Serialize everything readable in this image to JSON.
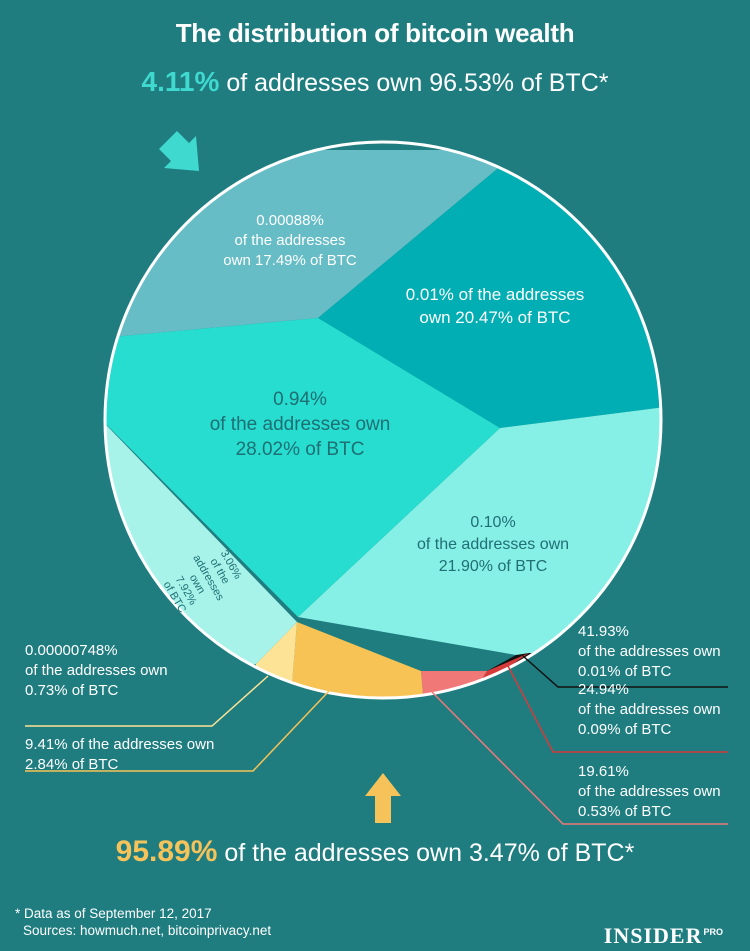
{
  "title": "The distribution of bitcoin wealth",
  "subtitle": {
    "highlight": "4.11%",
    "text": " of addresses own 96.53% of BTC*"
  },
  "bottom_headline": {
    "highlight": "95.89%",
    "text": " of the addresses own 3.47% of BTC*"
  },
  "footnote": {
    "line1": "* Data as of September 12, 2017",
    "line2": "Sources: howmuch.net, bitcoinprivacy.net"
  },
  "logo": {
    "name": "INSIDER",
    "tag": "PRO"
  },
  "icons": {
    "top_arrow": "arrow-down-right-icon",
    "bottom_arrow": "arrow-up-icon"
  },
  "colors": {
    "background": "#1f7d80",
    "top_highlight": "#3fd9cf",
    "bottom_highlight": "#f6c25a"
  },
  "chart_data": {
    "type": "pie",
    "slices": [
      {
        "addresses_pct": "0.00088%",
        "btc_pct": 17.49,
        "lines": [
          "0.00088%",
          "of the addresses",
          "own 17.49% of BTC"
        ],
        "color": "#66bdc6",
        "text_color": "#ffffff"
      },
      {
        "addresses_pct": "0.01%",
        "btc_pct": 20.47,
        "lines": [
          "0.01% of the addresses",
          "own 20.47% of BTC"
        ],
        "color": "#00aeb3",
        "text_color": "#ffffff"
      },
      {
        "addresses_pct": "0.10%",
        "btc_pct": 21.9,
        "lines": [
          "0.10%",
          "of the addresses own",
          "21.90% of BTC"
        ],
        "color": "#87f0e6",
        "text_color": "#1f6f74"
      },
      {
        "addresses_pct": "41.93%",
        "btc_pct": 0.01,
        "lines": [
          "41.93%",
          "of the addresses own",
          "0.01% of BTC"
        ],
        "color": "#111111",
        "text_color": "#ffffff"
      },
      {
        "addresses_pct": "24.94%",
        "btc_pct": 0.09,
        "lines": [
          "24.94%",
          "of the addresses own",
          "0.09% of BTC"
        ],
        "color": "#d63a3a",
        "text_color": "#ffffff"
      },
      {
        "addresses_pct": "19.61%",
        "btc_pct": 0.53,
        "lines": [
          "19.61%",
          "of the addresses own",
          "0.53% of BTC"
        ],
        "color": "#f07877",
        "text_color": "#ffffff"
      },
      {
        "addresses_pct": "9.41%",
        "btc_pct": 2.84,
        "lines": [
          "9.41% of the addresses own",
          "2.84% of BTC"
        ],
        "color": "#f7c355",
        "text_color": "#ffffff"
      },
      {
        "addresses_pct": "0.00000748%",
        "btc_pct": 0.73,
        "lines": [
          "0.00000748%",
          "of the addresses own",
          "0.73% of BTC"
        ],
        "color": "#fde396",
        "text_color": "#ffffff"
      },
      {
        "addresses_pct": "3.06%",
        "btc_pct": 7.92,
        "lines": [
          "3.06%",
          "of the",
          "addresses",
          "own",
          "7.92%",
          "of BTC"
        ],
        "color": "#a7f3ea",
        "text_color": "#1f6f74"
      },
      {
        "addresses_pct": "0.94%",
        "btc_pct": 28.02,
        "lines": [
          "0.94%",
          "of the addresses own",
          "28.02% of BTC"
        ],
        "color": "#26ddd0",
        "text_color": "#1f6f74"
      }
    ]
  }
}
